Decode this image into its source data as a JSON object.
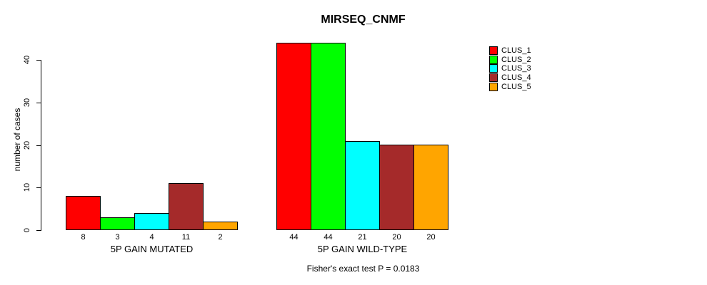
{
  "chart_data": {
    "type": "bar",
    "title": "MIRSEQ_CNMF",
    "xlabel": "",
    "ylabel": "number of cases",
    "categories": [
      "5P GAIN MUTATED",
      "5P GAIN WILD-TYPE"
    ],
    "series": [
      {
        "name": "CLUS_1",
        "color": "#FF0000",
        "values": [
          8,
          44
        ]
      },
      {
        "name": "CLUS_2",
        "color": "#00FF00",
        "values": [
          3,
          44
        ]
      },
      {
        "name": "CLUS_3",
        "color": "#00FFFF",
        "values": [
          4,
          21
        ]
      },
      {
        "name": "CLUS_4",
        "color": "#A52A2A",
        "values": [
          11,
          20
        ]
      },
      {
        "name": "CLUS_5",
        "color": "#FFA500",
        "values": [
          2,
          20
        ]
      }
    ],
    "yticks": [
      0,
      10,
      20,
      30,
      40
    ],
    "ylim": [
      0,
      44
    ],
    "grid": false,
    "bar_value_labels_shown": true,
    "legend_position": "right",
    "annotation": "Fisher's exact test P = 0.0183"
  }
}
